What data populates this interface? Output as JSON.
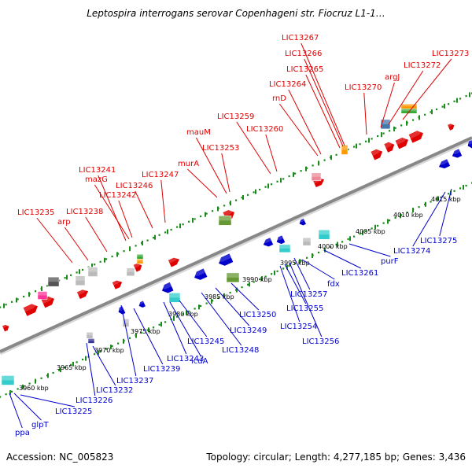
{
  "title": "Leptospira interrogans serovar Copenhageni str. Fiocruz L1-1…",
  "footer": {
    "accession": "Accession: NC_005823",
    "summary": "Topology: circular; Length: 4,277,185 bp; Genes: 3,436"
  },
  "colors": {
    "forward": "#e00000",
    "reverse": "#0000cc",
    "backbone": "#888888",
    "dots": "#1a8a1a"
  },
  "forward_labels": [
    {
      "text": "LIC13235"
    },
    {
      "text": "arp"
    },
    {
      "text": "LIC13238"
    },
    {
      "text": "LIC13241"
    },
    {
      "text": "mazG"
    },
    {
      "text": "LIC13242"
    },
    {
      "text": "LIC13246"
    },
    {
      "text": "LIC13247"
    },
    {
      "text": "murA"
    },
    {
      "text": "mauM"
    },
    {
      "text": "LIC13253"
    },
    {
      "text": "LIC13259"
    },
    {
      "text": "LIC13260"
    },
    {
      "text": "rnD"
    },
    {
      "text": "LIC13264"
    },
    {
      "text": "LIC13265"
    },
    {
      "text": "LIC13266"
    },
    {
      "text": "LIC13267"
    },
    {
      "text": "LIC13270"
    },
    {
      "text": "argJ"
    },
    {
      "text": "LIC13272"
    },
    {
      "text": "LIC13273"
    }
  ],
  "reverse_labels": [
    {
      "text": "ppa"
    },
    {
      "text": "glpT"
    },
    {
      "text": "LIC13225"
    },
    {
      "text": "LIC13226"
    },
    {
      "text": "LIC13232"
    },
    {
      "text": "LIC13237"
    },
    {
      "text": "LIC13239"
    },
    {
      "text": "LIC13243"
    },
    {
      "text": "icdA"
    },
    {
      "text": "LIC13245"
    },
    {
      "text": "LIC13248"
    },
    {
      "text": "LIC13249"
    },
    {
      "text": "LIC13250"
    },
    {
      "text": "LIC13254"
    },
    {
      "text": "LIC13255"
    },
    {
      "text": "LIC13256"
    },
    {
      "text": "LIC13257"
    },
    {
      "text": "fdx"
    },
    {
      "text": "LIC13261"
    },
    {
      "text": "purF"
    },
    {
      "text": "LIC13274"
    },
    {
      "text": "LIC13275"
    }
  ],
  "ticks": [
    "3960 kbp",
    "3965 kbp",
    "3970 kbp",
    "3975 kbp",
    "3980 kbp",
    "3985 kbp",
    "3990 kbp",
    "3995 kbp",
    "4000 kbp",
    "4005 kbp",
    "4010 kbp",
    "4015 kbp"
  ]
}
